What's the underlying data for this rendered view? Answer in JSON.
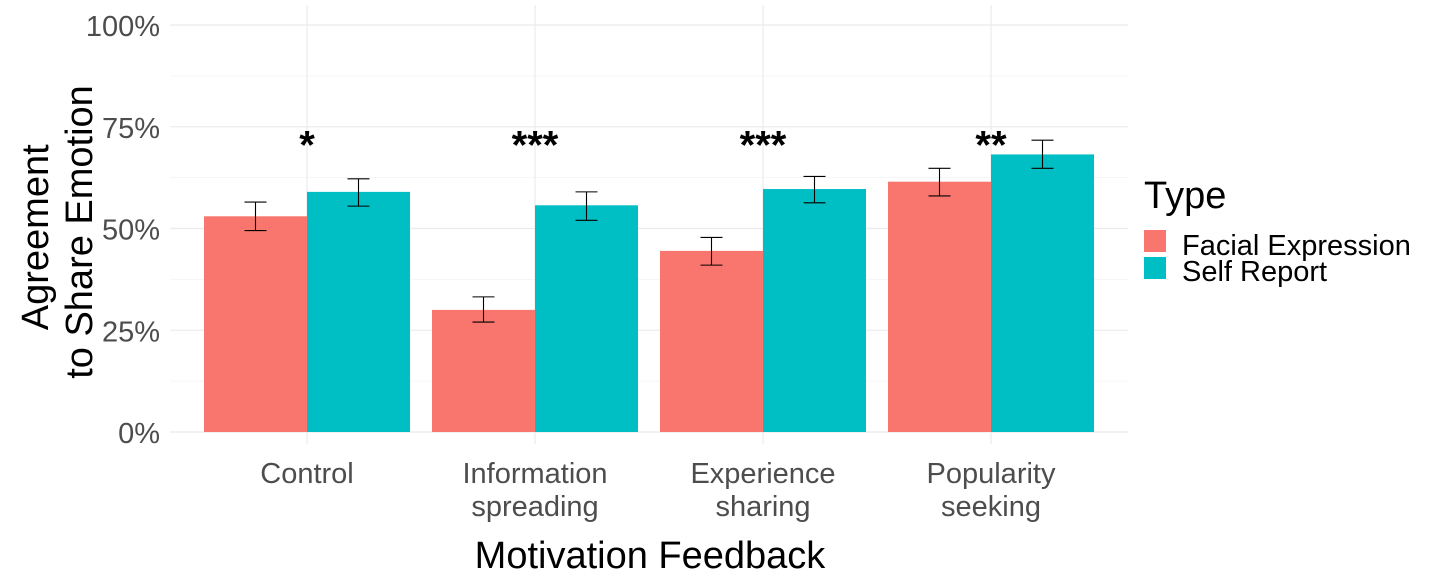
{
  "chart_data": {
    "type": "bar",
    "xlabel": "Motivation Feedback",
    "ylabel": [
      "Agreement",
      "to Share Emotion"
    ],
    "ylim": [
      0,
      1
    ],
    "y_ticks": [
      0,
      0.25,
      0.5,
      0.75,
      1.0
    ],
    "y_tick_labels": [
      "0%",
      "25%",
      "50%",
      "75%",
      "100%"
    ],
    "grid": true,
    "categories": [
      [
        "Control"
      ],
      [
        "Information",
        "spreading"
      ],
      [
        "Experience",
        "sharing"
      ],
      [
        "Popularity",
        "seeking"
      ]
    ],
    "series": [
      {
        "name": "Facial Expression",
        "color": "#F8766D",
        "values": [
          0.53,
          0.3,
          0.445,
          0.615
        ],
        "err_low": [
          0.495,
          0.27,
          0.41,
          0.58
        ],
        "err_high": [
          0.565,
          0.332,
          0.478,
          0.648
        ]
      },
      {
        "name": "Self Report",
        "color": "#00BFC4",
        "values": [
          0.59,
          0.557,
          0.597,
          0.682
        ],
        "err_low": [
          0.555,
          0.52,
          0.563,
          0.648
        ],
        "err_high": [
          0.622,
          0.59,
          0.628,
          0.717
        ]
      }
    ],
    "annotations": [
      "*",
      "***",
      "***",
      "**"
    ],
    "annotation_y": 0.77,
    "legend": {
      "title": "Type",
      "placement": "right",
      "entries": [
        "Facial Expression",
        "Self Report"
      ]
    }
  }
}
